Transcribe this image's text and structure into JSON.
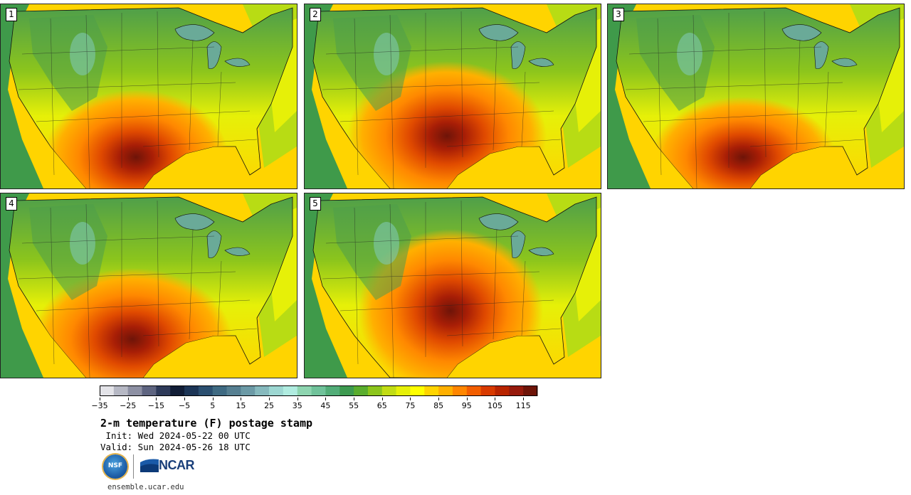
{
  "panels": [
    {
      "label": "1"
    },
    {
      "label": "2"
    },
    {
      "label": "3"
    },
    {
      "label": "4"
    },
    {
      "label": "5"
    }
  ],
  "colorbar": {
    "colors": [
      "#e3e3e8",
      "#b6b8c4",
      "#8d90a3",
      "#5e6480",
      "#2e3a59",
      "#111d36",
      "#1c3556",
      "#2b4f70",
      "#3f6a82",
      "#567f91",
      "#6c9aa6",
      "#86b9bd",
      "#9dd7d2",
      "#b0ece0",
      "#8ed5b0",
      "#70c29a",
      "#52ad78",
      "#3d9a50",
      "#5aad2e",
      "#8cc51c",
      "#c1dc14",
      "#e6f008",
      "#ffff00",
      "#ffd400",
      "#ffb000",
      "#ff8600",
      "#f25e00",
      "#d83a00",
      "#b82400",
      "#961a0c",
      "#6e1408"
    ],
    "tick_labels": [
      "−35",
      "−25",
      "−15",
      "−5",
      "5",
      "15",
      "25",
      "35",
      "45",
      "55",
      "65",
      "75",
      "85",
      "95",
      "105",
      "115"
    ]
  },
  "title": "2-m temperature (F) postage stamp",
  "init": " Init: Wed 2024-05-22 00 UTC",
  "valid": "Valid: Sun 2024-05-26 18 UTC",
  "logos": {
    "nsf": "NSF",
    "ncar": "NCAR"
  },
  "site": "ensemble.ucar.edu"
}
